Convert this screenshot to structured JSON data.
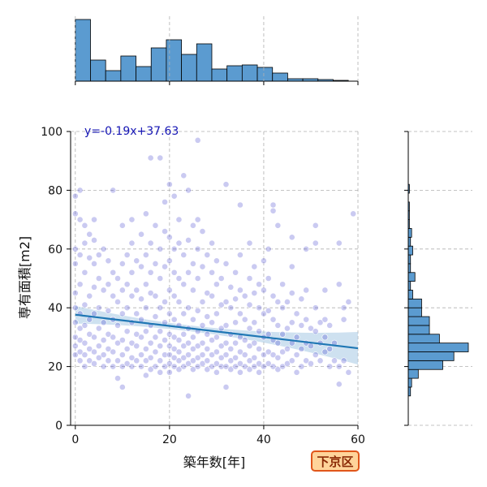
{
  "badge_label": "下京区",
  "colors": {
    "scatter": "#4040cc",
    "regression": "#1f77b4",
    "ci_band": "#a6c8e4",
    "hist": "#5b9bd0",
    "annotation": "#1414b4",
    "badge_fill": "#ffd49a",
    "badge_border": "#e0561a"
  },
  "chart_data": {
    "type": "scatter",
    "xlabel": "築年数[年]",
    "ylabel": "専有面積[m2]",
    "xlim": [
      -1,
      60
    ],
    "ylim": [
      0,
      100
    ],
    "xticks": [
      0,
      20,
      40,
      60
    ],
    "yticks": [
      0,
      20,
      40,
      60,
      80,
      100
    ],
    "grid": true,
    "regression": {
      "label": "y=-0.19x+37.63",
      "slope": -0.19,
      "intercept": 37.63,
      "x_range": [
        0,
        60
      ]
    },
    "points": [
      [
        0,
        24
      ],
      [
        0,
        27
      ],
      [
        0,
        30
      ],
      [
        0,
        35
      ],
      [
        0,
        40
      ],
      [
        0,
        45
      ],
      [
        0,
        55
      ],
      [
        0,
        60
      ],
      [
        0,
        72
      ],
      [
        0,
        78
      ],
      [
        1,
        22
      ],
      [
        1,
        25
      ],
      [
        1,
        29
      ],
      [
        1,
        33
      ],
      [
        1,
        38
      ],
      [
        1,
        48
      ],
      [
        1,
        58
      ],
      [
        1,
        70
      ],
      [
        1,
        80
      ],
      [
        2,
        20
      ],
      [
        2,
        24
      ],
      [
        2,
        28
      ],
      [
        2,
        34
      ],
      [
        2,
        41
      ],
      [
        2,
        52
      ],
      [
        2,
        62
      ],
      [
        2,
        68
      ],
      [
        3,
        22
      ],
      [
        3,
        26
      ],
      [
        3,
        31
      ],
      [
        3,
        36
      ],
      [
        3,
        44
      ],
      [
        3,
        57
      ],
      [
        3,
        65
      ],
      [
        4,
        21
      ],
      [
        4,
        25
      ],
      [
        4,
        30
      ],
      [
        4,
        38
      ],
      [
        4,
        47
      ],
      [
        4,
        55
      ],
      [
        4,
        63
      ],
      [
        4,
        70
      ],
      [
        5,
        23
      ],
      [
        5,
        27
      ],
      [
        5,
        33
      ],
      [
        5,
        40
      ],
      [
        5,
        50
      ],
      [
        5,
        58
      ],
      [
        6,
        20
      ],
      [
        6,
        24
      ],
      [
        6,
        29
      ],
      [
        6,
        35
      ],
      [
        6,
        46
      ],
      [
        6,
        60
      ],
      [
        7,
        22
      ],
      [
        7,
        26
      ],
      [
        7,
        31
      ],
      [
        7,
        39
      ],
      [
        7,
        48
      ],
      [
        7,
        56
      ],
      [
        8,
        20
      ],
      [
        8,
        25
      ],
      [
        8,
        30
      ],
      [
        8,
        36
      ],
      [
        8,
        44
      ],
      [
        8,
        52
      ],
      [
        8,
        80
      ],
      [
        9,
        16
      ],
      [
        9,
        22
      ],
      [
        9,
        28
      ],
      [
        9,
        34
      ],
      [
        9,
        42
      ],
      [
        9,
        50
      ],
      [
        10,
        13
      ],
      [
        10,
        20
      ],
      [
        10,
        24
      ],
      [
        10,
        29
      ],
      [
        10,
        38
      ],
      [
        10,
        46
      ],
      [
        10,
        55
      ],
      [
        10,
        68
      ],
      [
        11,
        21
      ],
      [
        11,
        26
      ],
      [
        11,
        32
      ],
      [
        11,
        40
      ],
      [
        11,
        48
      ],
      [
        11,
        58
      ],
      [
        12,
        20
      ],
      [
        12,
        23
      ],
      [
        12,
        28
      ],
      [
        12,
        35
      ],
      [
        12,
        44
      ],
      [
        12,
        52
      ],
      [
        12,
        62
      ],
      [
        12,
        70
      ],
      [
        13,
        22
      ],
      [
        13,
        27
      ],
      [
        13,
        31
      ],
      [
        13,
        38
      ],
      [
        13,
        46
      ],
      [
        13,
        56
      ],
      [
        14,
        20
      ],
      [
        14,
        24
      ],
      [
        14,
        30
      ],
      [
        14,
        36
      ],
      [
        14,
        43
      ],
      [
        14,
        54
      ],
      [
        14,
        65
      ],
      [
        15,
        17
      ],
      [
        15,
        22
      ],
      [
        15,
        26
      ],
      [
        15,
        32
      ],
      [
        15,
        40
      ],
      [
        15,
        48
      ],
      [
        15,
        58
      ],
      [
        15,
        72
      ],
      [
        16,
        19
      ],
      [
        16,
        23
      ],
      [
        16,
        28
      ],
      [
        16,
        34
      ],
      [
        16,
        45
      ],
      [
        16,
        52
      ],
      [
        16,
        62
      ],
      [
        16,
        91
      ],
      [
        17,
        20
      ],
      [
        17,
        25
      ],
      [
        17,
        30
      ],
      [
        17,
        37
      ],
      [
        17,
        44
      ],
      [
        17,
        55
      ],
      [
        17,
        68
      ],
      [
        18,
        18
      ],
      [
        18,
        22
      ],
      [
        18,
        27
      ],
      [
        18,
        32
      ],
      [
        18,
        40
      ],
      [
        18,
        50
      ],
      [
        18,
        60
      ],
      [
        18,
        91
      ],
      [
        19,
        20
      ],
      [
        19,
        24
      ],
      [
        19,
        29
      ],
      [
        19,
        35
      ],
      [
        19,
        42
      ],
      [
        19,
        54
      ],
      [
        19,
        66
      ],
      [
        19,
        76
      ],
      [
        20,
        18
      ],
      [
        20,
        21
      ],
      [
        20,
        24
      ],
      [
        20,
        27
      ],
      [
        20,
        31
      ],
      [
        20,
        38
      ],
      [
        20,
        46
      ],
      [
        20,
        56
      ],
      [
        20,
        64
      ],
      [
        20,
        82
      ],
      [
        21,
        20
      ],
      [
        21,
        23
      ],
      [
        21,
        26
      ],
      [
        21,
        30
      ],
      [
        21,
        36
      ],
      [
        21,
        44
      ],
      [
        21,
        52
      ],
      [
        21,
        60
      ],
      [
        21,
        78
      ],
      [
        22,
        19
      ],
      [
        22,
        22
      ],
      [
        22,
        25
      ],
      [
        22,
        29
      ],
      [
        22,
        34
      ],
      [
        22,
        42
      ],
      [
        22,
        50
      ],
      [
        22,
        62
      ],
      [
        22,
        70
      ],
      [
        23,
        20
      ],
      [
        23,
        23
      ],
      [
        23,
        27
      ],
      [
        23,
        31
      ],
      [
        23,
        38
      ],
      [
        23,
        48
      ],
      [
        23,
        58
      ],
      [
        23,
        85
      ],
      [
        24,
        10
      ],
      [
        24,
        21
      ],
      [
        24,
        24
      ],
      [
        24,
        28
      ],
      [
        24,
        33
      ],
      [
        24,
        40
      ],
      [
        24,
        52
      ],
      [
        24,
        63
      ],
      [
        24,
        80
      ],
      [
        25,
        19
      ],
      [
        25,
        22
      ],
      [
        25,
        26
      ],
      [
        25,
        30
      ],
      [
        25,
        36
      ],
      [
        25,
        46
      ],
      [
        25,
        55
      ],
      [
        25,
        68
      ],
      [
        26,
        20
      ],
      [
        26,
        23
      ],
      [
        26,
        27
      ],
      [
        26,
        32
      ],
      [
        26,
        39
      ],
      [
        26,
        50
      ],
      [
        26,
        60
      ],
      [
        26,
        70
      ],
      [
        26,
        97
      ],
      [
        27,
        21
      ],
      [
        27,
        24
      ],
      [
        27,
        28
      ],
      [
        27,
        34
      ],
      [
        27,
        42
      ],
      [
        27,
        54
      ],
      [
        27,
        66
      ],
      [
        28,
        19
      ],
      [
        28,
        22
      ],
      [
        28,
        26
      ],
      [
        28,
        31
      ],
      [
        28,
        37
      ],
      [
        28,
        45
      ],
      [
        28,
        58
      ],
      [
        29,
        20
      ],
      [
        29,
        24
      ],
      [
        29,
        29
      ],
      [
        29,
        35
      ],
      [
        29,
        44
      ],
      [
        29,
        52
      ],
      [
        29,
        62
      ],
      [
        30,
        18
      ],
      [
        30,
        21
      ],
      [
        30,
        25
      ],
      [
        30,
        30
      ],
      [
        30,
        38
      ],
      [
        30,
        48
      ],
      [
        30,
        56
      ],
      [
        31,
        20
      ],
      [
        31,
        23
      ],
      [
        31,
        27
      ],
      [
        31,
        33
      ],
      [
        31,
        41
      ],
      [
        31,
        50
      ],
      [
        32,
        13
      ],
      [
        32,
        20
      ],
      [
        32,
        24
      ],
      [
        32,
        28
      ],
      [
        32,
        34
      ],
      [
        32,
        42
      ],
      [
        32,
        55
      ],
      [
        32,
        82
      ],
      [
        33,
        19
      ],
      [
        33,
        22
      ],
      [
        33,
        26
      ],
      [
        33,
        31
      ],
      [
        33,
        40
      ],
      [
        33,
        47
      ],
      [
        34,
        20
      ],
      [
        34,
        23
      ],
      [
        34,
        28
      ],
      [
        34,
        35
      ],
      [
        34,
        43
      ],
      [
        34,
        52
      ],
      [
        35,
        18
      ],
      [
        35,
        21
      ],
      [
        35,
        25
      ],
      [
        35,
        30
      ],
      [
        35,
        38
      ],
      [
        35,
        46
      ],
      [
        35,
        58
      ],
      [
        35,
        75
      ],
      [
        36,
        20
      ],
      [
        36,
        24
      ],
      [
        36,
        29
      ],
      [
        36,
        36
      ],
      [
        36,
        44
      ],
      [
        37,
        19
      ],
      [
        37,
        22
      ],
      [
        37,
        27
      ],
      [
        37,
        33
      ],
      [
        37,
        41
      ],
      [
        37,
        50
      ],
      [
        37,
        62
      ],
      [
        38,
        20
      ],
      [
        38,
        23
      ],
      [
        38,
        28
      ],
      [
        38,
        35
      ],
      [
        38,
        45
      ],
      [
        38,
        54
      ],
      [
        39,
        18
      ],
      [
        39,
        21
      ],
      [
        39,
        26
      ],
      [
        39,
        32
      ],
      [
        39,
        40
      ],
      [
        39,
        48
      ],
      [
        40,
        20
      ],
      [
        40,
        24
      ],
      [
        40,
        30
      ],
      [
        40,
        38
      ],
      [
        40,
        46
      ],
      [
        40,
        56
      ],
      [
        41,
        21
      ],
      [
        41,
        25
      ],
      [
        41,
        31
      ],
      [
        41,
        39
      ],
      [
        41,
        50
      ],
      [
        41,
        60
      ],
      [
        42,
        20
      ],
      [
        42,
        24
      ],
      [
        42,
        29
      ],
      [
        42,
        36
      ],
      [
        42,
        44
      ],
      [
        42,
        75
      ],
      [
        42,
        73
      ],
      [
        43,
        19
      ],
      [
        43,
        23
      ],
      [
        43,
        28
      ],
      [
        43,
        34
      ],
      [
        43,
        42
      ],
      [
        43,
        68
      ],
      [
        44,
        20
      ],
      [
        44,
        25
      ],
      [
        44,
        31
      ],
      [
        44,
        40
      ],
      [
        44,
        48
      ],
      [
        45,
        21
      ],
      [
        45,
        26
      ],
      [
        45,
        33
      ],
      [
        45,
        42
      ],
      [
        46,
        22
      ],
      [
        46,
        28
      ],
      [
        46,
        35
      ],
      [
        46,
        45
      ],
      [
        46,
        54
      ],
      [
        46,
        64
      ],
      [
        47,
        18
      ],
      [
        47,
        24
      ],
      [
        47,
        30
      ],
      [
        47,
        38
      ],
      [
        48,
        20
      ],
      [
        48,
        26
      ],
      [
        48,
        34
      ],
      [
        48,
        43
      ],
      [
        49,
        22
      ],
      [
        49,
        28
      ],
      [
        49,
        36
      ],
      [
        49,
        46
      ],
      [
        49,
        60
      ],
      [
        50,
        21
      ],
      [
        50,
        27
      ],
      [
        50,
        33
      ],
      [
        51,
        24
      ],
      [
        51,
        32
      ],
      [
        51,
        40
      ],
      [
        51,
        62
      ],
      [
        51,
        68
      ],
      [
        52,
        22
      ],
      [
        52,
        28
      ],
      [
        52,
        35
      ],
      [
        53,
        25
      ],
      [
        53,
        30
      ],
      [
        53,
        36
      ],
      [
        53,
        46
      ],
      [
        54,
        20
      ],
      [
        54,
        26
      ],
      [
        54,
        34
      ],
      [
        55,
        22
      ],
      [
        55,
        28
      ],
      [
        56,
        14
      ],
      [
        56,
        20
      ],
      [
        56,
        48
      ],
      [
        56,
        62
      ],
      [
        57,
        22
      ],
      [
        57,
        36
      ],
      [
        57,
        40
      ],
      [
        58,
        18
      ],
      [
        58,
        42
      ],
      [
        59,
        72
      ]
    ],
    "marginal_x": {
      "type": "bar",
      "bin_edges": [
        0,
        3.22,
        6.44,
        9.66,
        12.88,
        16.1,
        19.32,
        22.54,
        25.76,
        28.98,
        32.2,
        35.42,
        38.64,
        41.86,
        45.08,
        48.3,
        51.52,
        54.74,
        57.96,
        61.18
      ],
      "counts": [
        76,
        26,
        13,
        31,
        18,
        41,
        51,
        33,
        46,
        15,
        19,
        20,
        17,
        10,
        3,
        3,
        2,
        1,
        0
      ]
    },
    "marginal_y": {
      "type": "bar",
      "bin_edges": [
        10,
        13,
        16,
        19,
        22,
        25,
        28,
        31,
        34,
        37,
        40,
        43,
        46,
        49,
        52,
        55,
        58,
        61,
        64,
        67,
        70,
        73,
        76,
        79,
        82,
        85
      ],
      "counts": [
        2,
        3,
        9,
        31,
        41,
        54,
        28,
        19,
        19,
        12,
        12,
        4,
        2,
        6,
        2,
        2,
        4,
        2,
        3,
        1,
        1,
        1,
        0,
        1,
        0
      ]
    }
  }
}
